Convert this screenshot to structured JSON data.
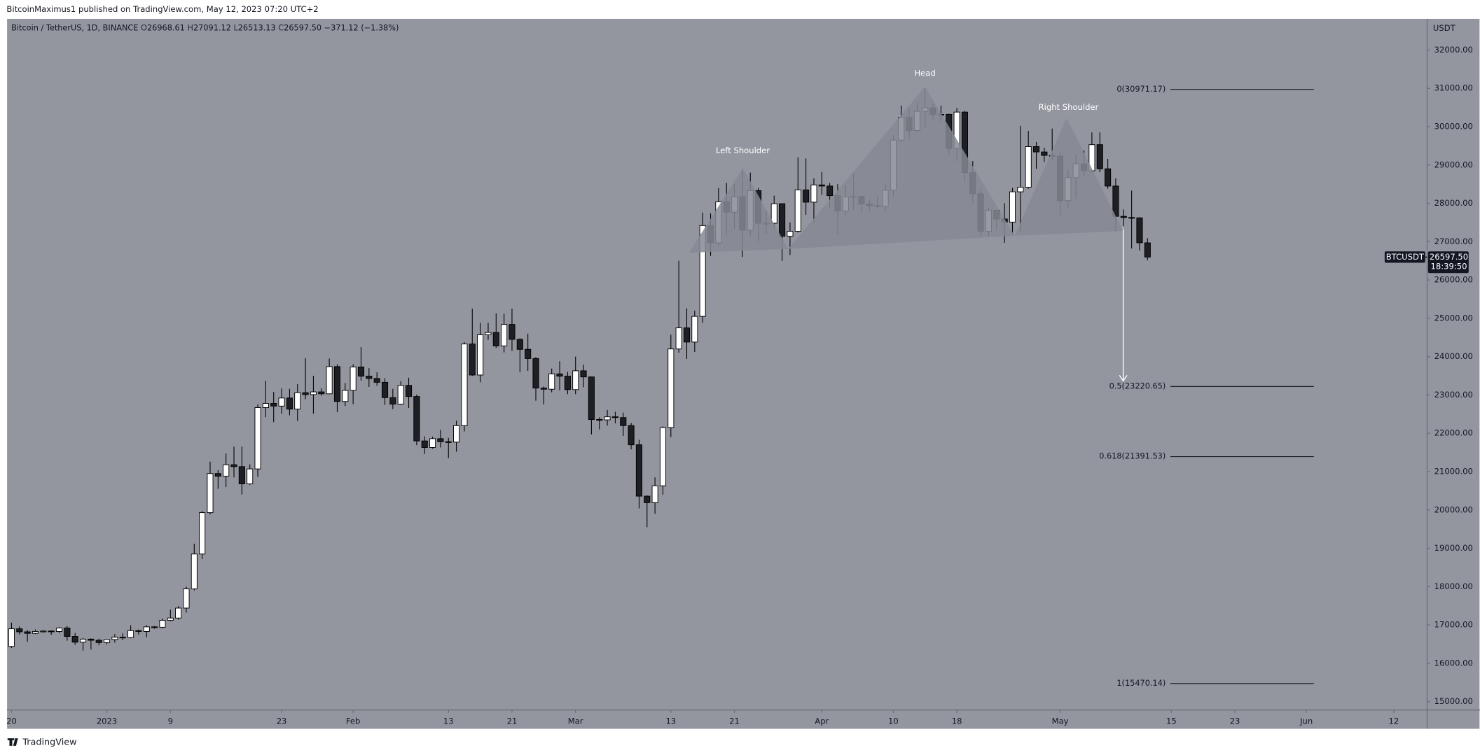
{
  "header": {
    "author_line": "BitcoinMaximus1 published on TradingView.com, May 12, 2023 07:20 UTC+2"
  },
  "chart_data": {
    "type": "candlestick",
    "symbol": "Bitcoin / TetherUS, 1D, BINANCE",
    "legend": [
      {
        "key": "O",
        "value": "26968.61"
      },
      {
        "key": "H",
        "value": "27091.12"
      },
      {
        "key": "L",
        "value": "26513.13"
      },
      {
        "key": "C",
        "value": "26597.50"
      }
    ],
    "change_label": "−371.12 (−1.38%)",
    "currency": "USDT",
    "ticker": "BTCUSDT",
    "last_price_label": "26597.50",
    "countdown": "18:39:50",
    "open": [
      16440,
      16900,
      16820,
      16780,
      16830,
      16840,
      16830,
      16920,
      16700,
      16550,
      16630,
      16600,
      16540,
      16620,
      16680,
      16670,
      16850,
      16830,
      16950,
      16940,
      17120,
      17180,
      17440,
      17940,
      18850,
      19930,
      20950,
      20880,
      21180,
      21130,
      20680,
      21070,
      22670,
      22780,
      22710,
      22920,
      22630,
      23060,
      23010,
      23080,
      23030,
      23740,
      22830,
      23120,
      23730,
      23490,
      23430,
      23330,
      22930,
      22760,
      23250,
      22960,
      21800,
      21630,
      21860,
      21780,
      21770,
      22200,
      24330,
      23520,
      24570,
      24630,
      24280,
      24840,
      24450,
      24190,
      23950,
      23180,
      23150,
      23550,
      23490,
      23140,
      23630,
      23470,
      22360,
      22350,
      22430,
      22410,
      22200,
      21700,
      20360,
      20190,
      20630,
      22150,
      24200,
      24750,
      24380,
      25050,
      27420,
      26970,
      28040,
      27770,
      28170,
      27300,
      28330,
      27480,
      27480,
      27990,
      27140,
      27270,
      28350,
      28030,
      28480,
      28450,
      28200,
      27800,
      28170,
      28180,
      27980,
      27940,
      27920,
      28340,
      29650,
      30240,
      29900,
      30400,
      30490,
      30320,
      30320,
      29430,
      30380,
      28800,
      28250,
      27270,
      27820,
      27590,
      27510,
      28300,
      28420,
      29480,
      29340,
      29250,
      29230,
      28070,
      28670,
      29030,
      28850,
      29530,
      28900,
      28450,
      27660,
      27630,
      27620,
      26968.61
    ],
    "high": [
      17060,
      16960,
      16870,
      16880,
      16870,
      16860,
      16940,
      16970,
      16790,
      16660,
      16650,
      16640,
      16630,
      16760,
      16780,
      16990,
      16880,
      16990,
      16970,
      17170,
      17400,
      17490,
      18000,
      19120,
      19970,
      21260,
      21040,
      21470,
      21650,
      21650,
      21190,
      22750,
      23370,
      23080,
      23170,
      23160,
      23280,
      23960,
      23500,
      23170,
      23950,
      23800,
      23310,
      23800,
      24250,
      23700,
      23590,
      23440,
      23160,
      23360,
      23450,
      23010,
      21920,
      21910,
      22090,
      21880,
      22330,
      24380,
      25250,
      24880,
      24880,
      25130,
      25120,
      25250,
      24480,
      24600,
      23990,
      23220,
      23690,
      23880,
      23600,
      24000,
      23790,
      23480,
      22420,
      22610,
      22560,
      22540,
      22270,
      21830,
      20380,
      20850,
      22180,
      24570,
      26500,
      25260,
      25200,
      27760,
      27740,
      28400,
      28530,
      28500,
      28850,
      28800,
      28400,
      27800,
      28200,
      28000,
      27500,
      29200,
      29170,
      28650,
      28820,
      28530,
      28500,
      28450,
      28780,
      28190,
      28100,
      28170,
      28530,
      29770,
      30550,
      30490,
      30620,
      31000,
      30600,
      30550,
      30340,
      30490,
      30410,
      29100,
      28370,
      27880,
      27820,
      28000,
      28400,
      30020,
      29890,
      29600,
      29450,
      29950,
      29330,
      28880,
      29270,
      29380,
      29850,
      29850,
      29160,
      28650,
      27840,
      28330,
      27640,
      27091.12
    ],
    "low": [
      16400,
      16750,
      16560,
      16760,
      16800,
      16740,
      16790,
      16590,
      16480,
      16330,
      16360,
      16470,
      16490,
      16540,
      16600,
      16650,
      16750,
      16680,
      16900,
      16910,
      17100,
      17140,
      17320,
      17900,
      18720,
      19880,
      20550,
      20600,
      20850,
      20400,
      20650,
      20860,
      22420,
      22290,
      22510,
      22470,
      22320,
      22890,
      22510,
      22980,
      23020,
      22550,
      22710,
      22760,
      23370,
      23210,
      23240,
      22740,
      22630,
      22740,
      22660,
      21690,
      21460,
      21600,
      21630,
      21350,
      21520,
      22050,
      23500,
      23330,
      24440,
      24230,
      24110,
      24150,
      23590,
      23630,
      22850,
      22750,
      23070,
      23120,
      23020,
      23020,
      23200,
      21970,
      22100,
      22200,
      22260,
      21930,
      21580,
      20040,
      19550,
      19900,
      20400,
      21900,
      24100,
      23940,
      24120,
      24880,
      26630,
      26900,
      27150,
      27330,
      26600,
      27150,
      27000,
      27200,
      27360,
      26500,
      26650,
      27240,
      27700,
      27520,
      28220,
      27870,
      27200,
      27670,
      27830,
      27720,
      27790,
      27880,
      27800,
      28170,
      29600,
      29680,
      29880,
      29970,
      30190,
      30120,
      29270,
      29100,
      28560,
      28010,
      27130,
      27130,
      27330,
      26970,
      27200,
      27250,
      28380,
      28900,
      29080,
      29130,
      27680,
      27870,
      28120,
      28690,
      28800,
      28810,
      28380,
      27270,
      27320,
      26820,
      26770,
      26513.13
    ],
    "close": [
      16900,
      16820,
      16780,
      16830,
      16840,
      16830,
      16920,
      16700,
      16550,
      16630,
      16600,
      16540,
      16620,
      16680,
      16670,
      16850,
      16830,
      16950,
      16940,
      17120,
      17180,
      17440,
      17940,
      18850,
      19930,
      20950,
      20880,
      21180,
      21130,
      20680,
      21070,
      22670,
      22780,
      22710,
      22920,
      22630,
      23060,
      23010,
      23080,
      23030,
      23740,
      22830,
      23120,
      23730,
      23490,
      23430,
      23330,
      22930,
      22760,
      23250,
      22960,
      21800,
      21630,
      21860,
      21780,
      21770,
      22200,
      24330,
      23520,
      24570,
      24630,
      24280,
      24840,
      24450,
      24190,
      23950,
      23180,
      23150,
      23550,
      23490,
      23140,
      23630,
      23470,
      22360,
      22350,
      22430,
      22410,
      22200,
      21700,
      20360,
      20190,
      20630,
      22150,
      24200,
      24750,
      24380,
      25050,
      27420,
      26970,
      28040,
      27770,
      28170,
      27300,
      28330,
      27480,
      27480,
      27990,
      27140,
      27270,
      28350,
      28030,
      28480,
      28450,
      28200,
      27800,
      28170,
      28180,
      27980,
      27940,
      27920,
      28340,
      29650,
      30240,
      29900,
      30400,
      30490,
      30320,
      30320,
      29430,
      30380,
      28800,
      28250,
      27270,
      27820,
      27590,
      27510,
      28300,
      28420,
      29480,
      29340,
      29250,
      29230,
      28070,
      28670,
      29030,
      28850,
      29530,
      28900,
      28450,
      27660,
      27630,
      27620,
      26970,
      26597.5
    ],
    "xlim": [
      -0.5,
      178.2
    ],
    "xticks": [
      {
        "value": 0,
        "label": "20"
      },
      {
        "value": 12,
        "label": "2023"
      },
      {
        "value": 20,
        "label": "9"
      },
      {
        "value": 34,
        "label": "23"
      },
      {
        "value": 43,
        "label": "Feb"
      },
      {
        "value": 55,
        "label": "13"
      },
      {
        "value": 63,
        "label": "21"
      },
      {
        "value": 71,
        "label": "Mar"
      },
      {
        "value": 83,
        "label": "13"
      },
      {
        "value": 91,
        "label": "21"
      },
      {
        "value": 102,
        "label": "Apr"
      },
      {
        "value": 111,
        "label": "10"
      },
      {
        "value": 119,
        "label": "18"
      },
      {
        "value": 132,
        "label": "May"
      },
      {
        "value": 146,
        "label": "15"
      },
      {
        "value": 154,
        "label": "23"
      },
      {
        "value": 163,
        "label": "Jun"
      },
      {
        "value": 174,
        "label": "12"
      }
    ],
    "ylim": [
      14780,
      32812
    ],
    "yticks": [
      {
        "value": 15000,
        "label": "15000.00"
      },
      {
        "value": 16000,
        "label": "16000.00"
      },
      {
        "value": 17000,
        "label": "17000.00"
      },
      {
        "value": 18000,
        "label": "18000.00"
      },
      {
        "value": 19000,
        "label": "19000.00"
      },
      {
        "value": 20000,
        "label": "20000.00"
      },
      {
        "value": 21000,
        "label": "21000.00"
      },
      {
        "value": 22000,
        "label": "22000.00"
      },
      {
        "value": 23000,
        "label": "23000.00"
      },
      {
        "value": 24000,
        "label": "24000.00"
      },
      {
        "value": 25000,
        "label": "25000.00"
      },
      {
        "value": 26000,
        "label": "26000.00"
      },
      {
        "value": 27000,
        "label": "27000.00"
      },
      {
        "value": 28000,
        "label": "28000.00"
      },
      {
        "value": 29000,
        "label": "29000.00"
      },
      {
        "value": 30000,
        "label": "30000.00"
      },
      {
        "value": 31000,
        "label": "31000.00"
      },
      {
        "value": 32000,
        "label": "32000.00"
      }
    ],
    "grid": false,
    "up_color": "#ffffff",
    "down_color": "#1e1f24",
    "fib_levels": [
      {
        "label": "0(30971.17)",
        "value": 30971.17
      },
      {
        "label": "0.5(23220.65)",
        "value": 23220.65
      },
      {
        "label": "0.618(21391.53)",
        "value": 21391.53
      },
      {
        "label": "1(15470.14)",
        "value": 15470.14
      }
    ],
    "annotations": [
      "Left Shoulder",
      "Head",
      "Right Shoulder"
    ]
  },
  "footer": {
    "brand": "TradingView"
  }
}
